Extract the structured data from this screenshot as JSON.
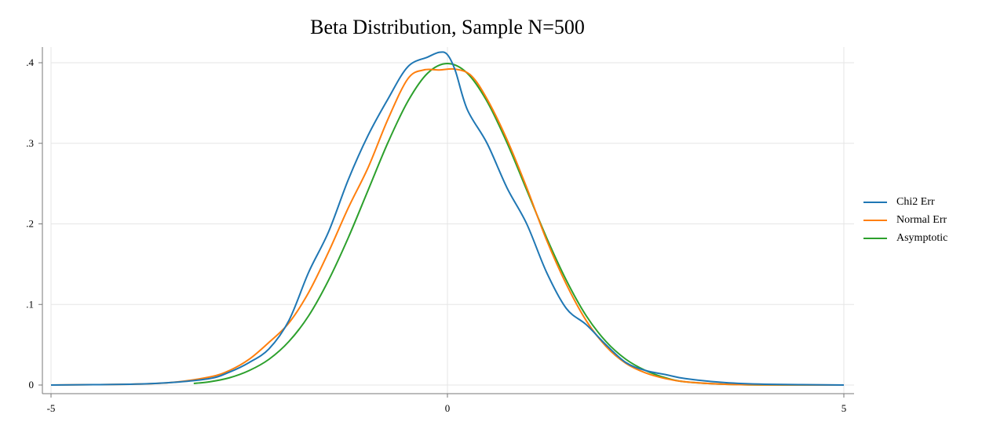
{
  "chart_data": {
    "type": "line",
    "title": "Beta Distribution, Sample N=500",
    "xlabel": "",
    "ylabel": "",
    "xlim": [
      -5,
      5
    ],
    "ylim": [
      0,
      0.4
    ],
    "xticks": [
      -5,
      0,
      5
    ],
    "xtick_labels": [
      "-5",
      "0",
      "5"
    ],
    "yticks": [
      0,
      0.1,
      0.2,
      0.3,
      0.4
    ],
    "ytick_labels": [
      "0",
      ".1",
      ".2",
      ".3",
      ".4"
    ],
    "grid": true,
    "legend_position": "right",
    "series": [
      {
        "name": "Chi2 Err",
        "color": "#1f77b4",
        "x": [
          -5,
          -4,
          -3.5,
          -3,
          -2.75,
          -2.5,
          -2.25,
          -2,
          -1.75,
          -1.5,
          -1.25,
          -1,
          -0.75,
          -0.5,
          -0.25,
          -0.1,
          0,
          0.1,
          0.25,
          0.5,
          0.75,
          1,
          1.25,
          1.5,
          1.75,
          2,
          2.25,
          2.5,
          2.75,
          3,
          3.5,
          4,
          5
        ],
        "values": [
          0,
          0.001,
          0.003,
          0.008,
          0.016,
          0.028,
          0.045,
          0.08,
          0.14,
          0.19,
          0.255,
          0.31,
          0.355,
          0.395,
          0.407,
          0.413,
          0.41,
          0.39,
          0.342,
          0.3,
          0.245,
          0.2,
          0.14,
          0.095,
          0.075,
          0.05,
          0.028,
          0.018,
          0.013,
          0.008,
          0.003,
          0.001,
          0
        ]
      },
      {
        "name": "Normal Err",
        "color": "#ff7f0e",
        "x": [
          -5,
          -4,
          -3.5,
          -3,
          -2.75,
          -2.5,
          -2.25,
          -2,
          -1.75,
          -1.5,
          -1.25,
          -1,
          -0.75,
          -0.5,
          -0.3,
          -0.1,
          0.1,
          0.3,
          0.5,
          0.75,
          1,
          1.25,
          1.5,
          1.75,
          2,
          2.25,
          2.5,
          2.75,
          3,
          3.5,
          4,
          5
        ],
        "values": [
          0,
          0.001,
          0.003,
          0.01,
          0.018,
          0.032,
          0.053,
          0.077,
          0.115,
          0.165,
          0.22,
          0.27,
          0.33,
          0.38,
          0.391,
          0.391,
          0.392,
          0.384,
          0.355,
          0.305,
          0.245,
          0.18,
          0.125,
          0.08,
          0.048,
          0.027,
          0.015,
          0.008,
          0.004,
          0.001,
          0.0003,
          0
        ]
      },
      {
        "name": "Asymptotic",
        "color": "#2ca02c",
        "x": [
          -3.2,
          -3,
          -2.75,
          -2.5,
          -2.25,
          -2,
          -1.75,
          -1.5,
          -1.25,
          -1,
          -0.75,
          -0.5,
          -0.25,
          0,
          0.25,
          0.5,
          0.75,
          1,
          1.25,
          1.5,
          1.75,
          2,
          2.25,
          2.5,
          2.75,
          3,
          3.5,
          4,
          4.5,
          5
        ],
        "values": [
          0.002,
          0.004,
          0.009,
          0.018,
          0.032,
          0.054,
          0.086,
          0.13,
          0.183,
          0.242,
          0.301,
          0.352,
          0.387,
          0.399,
          0.387,
          0.352,
          0.301,
          0.242,
          0.183,
          0.13,
          0.086,
          0.054,
          0.032,
          0.018,
          0.009,
          0.004,
          0.001,
          0.0001,
          0,
          0
        ]
      }
    ]
  }
}
